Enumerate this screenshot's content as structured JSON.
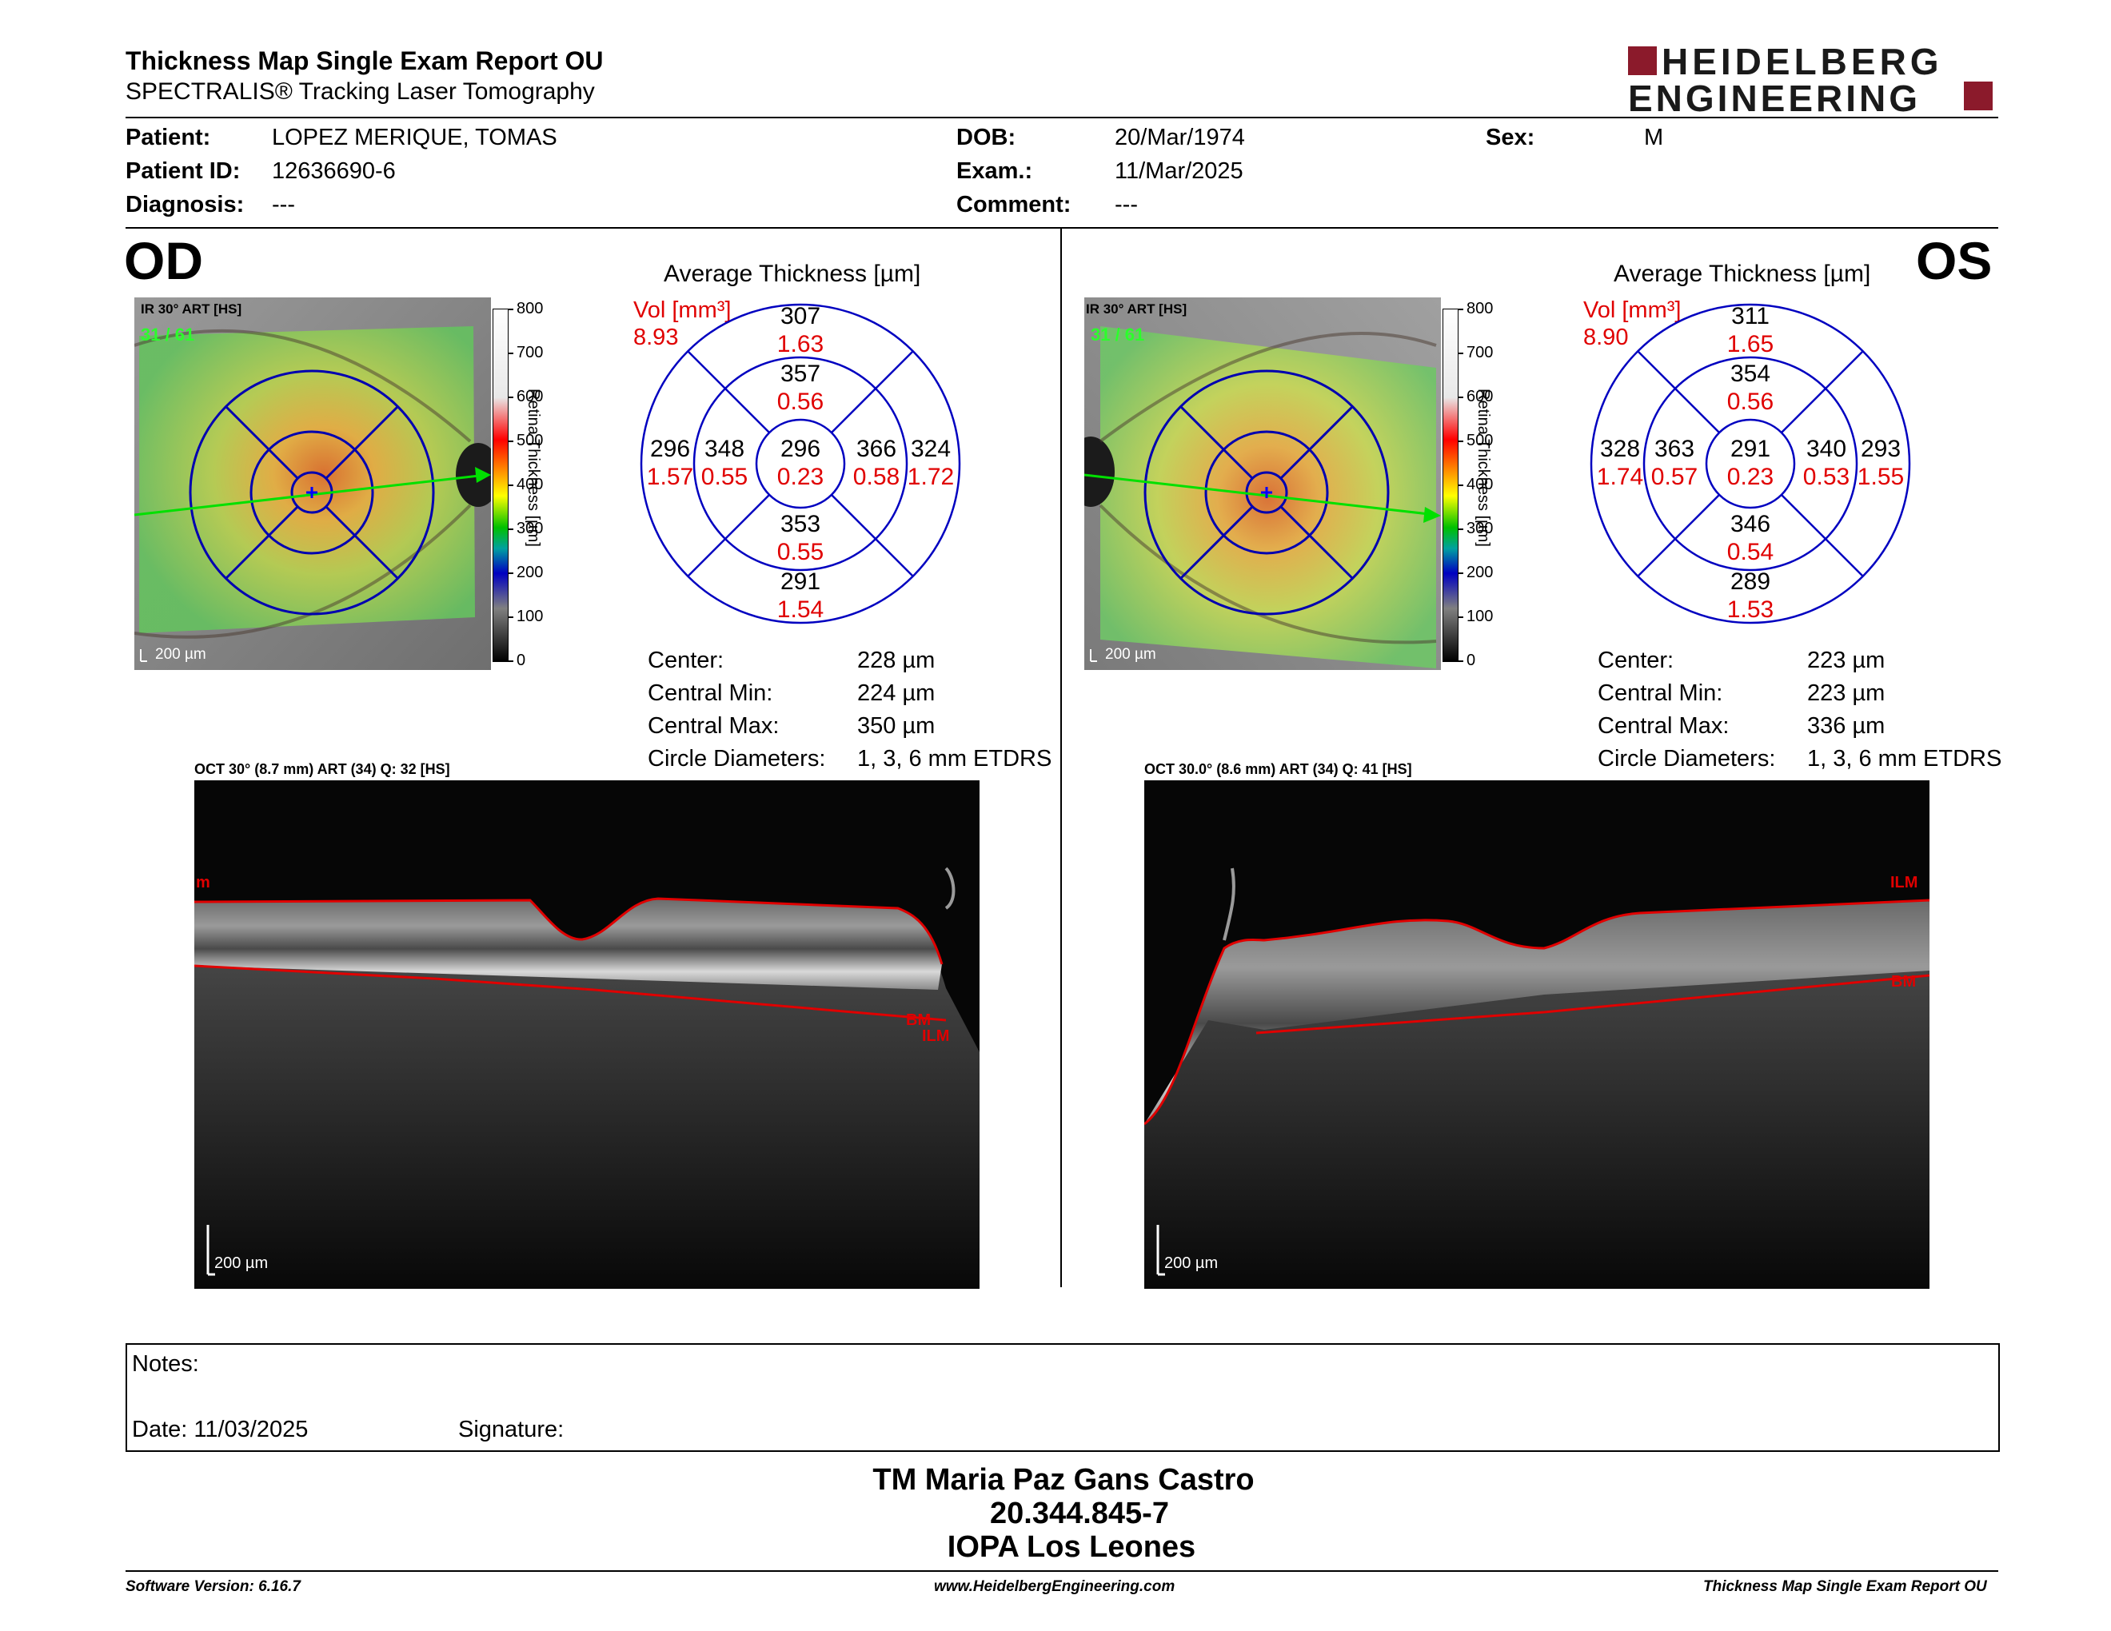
{
  "header": {
    "title": "Thickness Map Single Exam Report OU",
    "subtitle": "SPECTRALIS® Tracking Laser Tomography",
    "logo_line1": "HEIDELBERG",
    "logo_line2": "ENGINEERING"
  },
  "patient": {
    "patient_label": "Patient:",
    "patient_value": "LOPEZ MERIQUE, TOMAS",
    "id_label": "Patient ID:",
    "id_value": "12636690-6",
    "diag_label": "Diagnosis:",
    "diag_value": "---",
    "dob_label": "DOB:",
    "dob_value": "20/Mar/1974",
    "exam_label": "Exam.:",
    "exam_value": "11/Mar/2025",
    "comment_label": "Comment:",
    "comment_value": "---",
    "sex_label": "Sex:",
    "sex_value": "M"
  },
  "colorbar": {
    "ticks": [
      "800",
      "700",
      "600",
      "500",
      "400",
      "300",
      "200",
      "100",
      "0"
    ],
    "label": "Retina Thickness [µm]"
  },
  "od": {
    "eye": "OD",
    "ir_label": "IR 30° ART [HS]",
    "frame": "31 / 61",
    "scale": "200 µm",
    "avg_title": "Average Thickness [µm]",
    "vol_label": "Vol [mm³]",
    "vol_value": "8.93",
    "etdrs": {
      "center": [
        "296",
        "0.23"
      ],
      "inner_sup": [
        "357",
        "0.56"
      ],
      "inner_inf": [
        "353",
        "0.55"
      ],
      "inner_temp": [
        "348",
        "0.55"
      ],
      "inner_nas": [
        "366",
        "0.58"
      ],
      "outer_sup": [
        "307",
        "1.63"
      ],
      "outer_inf": [
        "291",
        "1.54"
      ],
      "outer_temp": [
        "296",
        "1.57"
      ],
      "outer_nas": [
        "324",
        "1.72"
      ]
    },
    "stats": [
      {
        "label": "Center:",
        "value": "228 µm"
      },
      {
        "label": "Central Min:",
        "value": "224 µm"
      },
      {
        "label": "Central Max:",
        "value": "350 µm"
      },
      {
        "label": "Circle Diameters:",
        "value": "1, 3, 6 mm ETDRS"
      }
    ],
    "oct_label": "OCT 30° (8.7 mm) ART (34) Q: 32 [HS]",
    "oct_scale": "200 µm",
    "seg_ilm": "ILM",
    "seg_bm": "BM",
    "seg_ilm_edge": "m"
  },
  "os": {
    "eye": "OS",
    "ir_label": "IR 30° ART [HS]",
    "frame": "31 / 61",
    "scale": "200 µm",
    "avg_title": "Average Thickness [µm]",
    "vol_label": "Vol [mm³]",
    "vol_value": "8.90",
    "etdrs": {
      "center": [
        "291",
        "0.23"
      ],
      "inner_sup": [
        "354",
        "0.56"
      ],
      "inner_inf": [
        "346",
        "0.54"
      ],
      "inner_temp": [
        "340",
        "0.53"
      ],
      "inner_nas": [
        "363",
        "0.57"
      ],
      "outer_sup": [
        "311",
        "1.65"
      ],
      "outer_inf": [
        "289",
        "1.53"
      ],
      "outer_temp": [
        "293",
        "1.55"
      ],
      "outer_nas": [
        "328",
        "1.74"
      ]
    },
    "stats": [
      {
        "label": "Center:",
        "value": "223 µm"
      },
      {
        "label": "Central Min:",
        "value": "223 µm"
      },
      {
        "label": "Central Max:",
        "value": "336 µm"
      },
      {
        "label": "Circle Diameters:",
        "value": "1, 3, 6 mm ETDRS"
      }
    ],
    "oct_label": "OCT 30.0° (8.6 mm) ART (34) Q: 41 [HS]",
    "oct_scale": "200 µm",
    "seg_ilm": "ILM",
    "seg_bm": "BM"
  },
  "notes": {
    "notes_label": "Notes:",
    "date_label": "Date: 11/03/2025",
    "signature_label": "Signature:"
  },
  "stamp": {
    "line1": "TM Maria Paz Gans Castro",
    "line2": "20.344.845-7",
    "line3": "IOPA Los Leones"
  },
  "footer": {
    "software": "Software Version: 6.16.7",
    "url": "www.HeidelbergEngineering.com",
    "report": "Thickness Map Single Exam Report OU"
  }
}
